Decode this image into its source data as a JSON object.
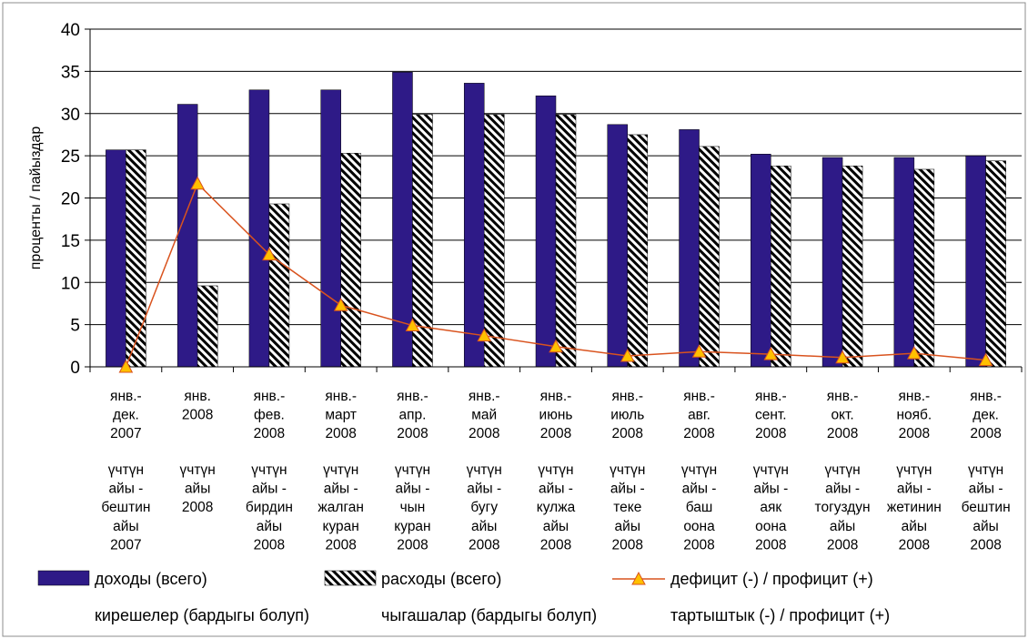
{
  "chart_data": {
    "type": "bar",
    "ylabel": "проценты / пайыздар",
    "ylim": [
      0,
      40
    ],
    "yticks": [
      "0",
      "5",
      "10",
      "15",
      "20",
      "25",
      "30",
      "35",
      "40"
    ],
    "grid": "horizontal",
    "legend_position": "bottom",
    "categories": [
      {
        "ru": [
          "янв.-",
          "дек.",
          "2007"
        ],
        "ky": [
          "үчтүн",
          "айы -",
          "бештин",
          "айы",
          "2007"
        ]
      },
      {
        "ru": [
          "янв.",
          "2008"
        ],
        "ky": [
          "үчтүн",
          "айы",
          "2008"
        ]
      },
      {
        "ru": [
          "янв.-",
          "фев.",
          "2008"
        ],
        "ky": [
          "үчтүн",
          "айы -",
          "бирдин",
          "айы",
          "2008"
        ]
      },
      {
        "ru": [
          "янв.-",
          "март",
          "2008"
        ],
        "ky": [
          "үчтүн",
          "айы -",
          "жалган",
          "куран",
          "2008"
        ]
      },
      {
        "ru": [
          "янв.-",
          "апр.",
          "2008"
        ],
        "ky": [
          "үчтүн",
          "айы -",
          "чын",
          "куран",
          "2008"
        ]
      },
      {
        "ru": [
          "янв.-",
          "май",
          "2008"
        ],
        "ky": [
          "үчтүн",
          "айы -",
          "бугу",
          "айы",
          "2008"
        ]
      },
      {
        "ru": [
          "янв.-",
          "июнь",
          "2008"
        ],
        "ky": [
          "үчтүн",
          "айы -",
          "кулжа",
          "айы",
          "2008"
        ]
      },
      {
        "ru": [
          "янв.-",
          "июль",
          "2008"
        ],
        "ky": [
          "үчтүн",
          "айы -",
          "теке",
          "айы",
          "2008"
        ]
      },
      {
        "ru": [
          "янв.-",
          "авг.",
          "2008"
        ],
        "ky": [
          "үчтүн",
          "айы -",
          "баш",
          "оона",
          "2008"
        ]
      },
      {
        "ru": [
          "янв.-",
          "сент.",
          "2008"
        ],
        "ky": [
          "үчтүн",
          "айы -",
          "аяк",
          "оона",
          "2008"
        ]
      },
      {
        "ru": [
          "янв.-",
          "окт.",
          "2008"
        ],
        "ky": [
          "үчтүн",
          "айы -",
          "тогуздун",
          "айы",
          "2008"
        ]
      },
      {
        "ru": [
          "янв.-",
          "нояб.",
          "2008"
        ],
        "ky": [
          "үчтүн",
          "айы -",
          "жетинин",
          "айы",
          "2008"
        ]
      },
      {
        "ru": [
          "янв.-",
          "дек.",
          "2008"
        ],
        "ky": [
          "үчтүн",
          "айы -",
          "бештин",
          "айы",
          "2008"
        ]
      }
    ],
    "series": [
      {
        "name": "доходы (всего)",
        "type": "bar",
        "color": "#2E1A87",
        "values": [
          25.7,
          31.1,
          32.8,
          32.8,
          34.9,
          33.6,
          32.1,
          28.7,
          28.1,
          25.2,
          24.8,
          24.8,
          25.0
        ]
      },
      {
        "name": "расходы (всего)",
        "type": "bar",
        "pattern": "diagonal-stripes",
        "values": [
          25.7,
          9.6,
          19.3,
          25.3,
          29.9,
          29.9,
          29.9,
          27.5,
          26.1,
          23.8,
          23.8,
          23.4,
          24.4
        ]
      },
      {
        "name": "дефицит (-) / профицит (+)",
        "type": "line",
        "color": "#D9531E",
        "marker": "triangle",
        "marker_color": "#FFC000",
        "values": [
          0.0,
          21.7,
          13.3,
          7.3,
          4.9,
          3.7,
          2.4,
          1.3,
          1.8,
          1.5,
          1.1,
          1.6,
          0.8
        ]
      }
    ]
  },
  "legend_secondary": [
    "кирешелер (бардыгы болуп)",
    "чыгашалар (бардыгы болуп)",
    "тартыштык (-) / профицит (+)"
  ]
}
